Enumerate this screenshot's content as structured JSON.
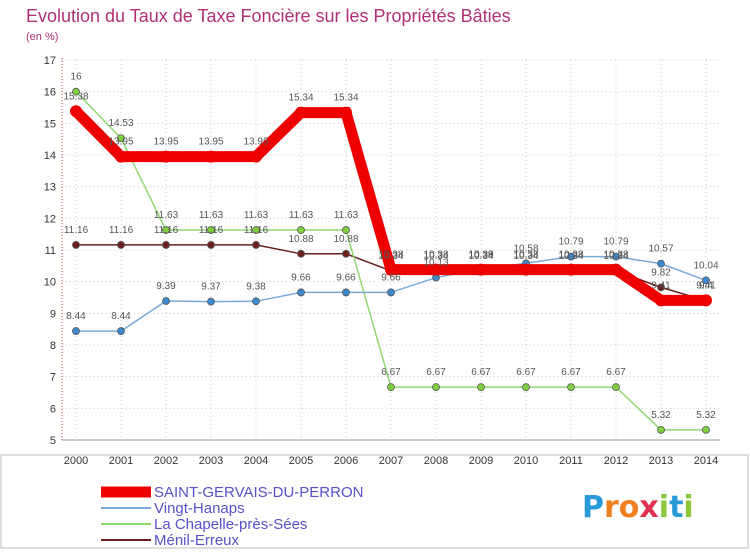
{
  "chart_data": {
    "type": "line",
    "title": "Evolution du Taux de Taxe Foncière sur les Propriétés Bâties",
    "unit_label": "(en %)",
    "ylim": [
      5,
      17
    ],
    "y_ticks": [
      5,
      6,
      7,
      8,
      9,
      10,
      11,
      12,
      13,
      14,
      15,
      16,
      17
    ],
    "categories": [
      "2000",
      "2001",
      "2002",
      "2003",
      "2004",
      "2005",
      "2006",
      "2007",
      "2008",
      "2009",
      "2010",
      "2011",
      "2012",
      "2013",
      "2014"
    ],
    "legend_position": "bottom-left",
    "series": [
      {
        "name": "Ménil-Erreux",
        "color": "#6b1f1f",
        "point_color": "#6b1f1f",
        "weight": "thin",
        "values": [
          11.16,
          11.16,
          11.16,
          11.16,
          11.16,
          10.88,
          10.88,
          10.34,
          10.34,
          10.34,
          10.34,
          10.34,
          10.34,
          9.82,
          9.4
        ],
        "labels": [
          "11.16",
          "11.16",
          "11.16",
          "11.16",
          "11.16",
          "10.88",
          "10.88",
          "10.34",
          "10.34",
          "10.34",
          "10.34",
          "10.34",
          "10.34",
          "9.82",
          "9.4"
        ]
      },
      {
        "name": "La Chapelle-près-Sées",
        "color": "#90d870",
        "point_color": "#7fd040",
        "weight": "thin",
        "values": [
          16,
          14.53,
          11.63,
          11.63,
          11.63,
          11.63,
          11.63,
          6.67,
          6.67,
          6.67,
          6.67,
          6.67,
          6.67,
          5.32,
          5.32
        ],
        "labels": [
          "16",
          "14.53",
          "11.63",
          "11.63",
          "11.63",
          "11.63",
          "11.63",
          "6.67",
          "6.67",
          "6.67",
          "6.67",
          "6.67",
          "6.67",
          "5.32",
          "5.32"
        ]
      },
      {
        "name": "Vingt-Hanaps",
        "color": "#7aaad8",
        "point_color": "#3c8ad0",
        "weight": "thin",
        "values": [
          8.44,
          8.44,
          9.39,
          9.37,
          9.38,
          9.66,
          9.66,
          9.66,
          10.13,
          10.39,
          10.58,
          10.79,
          10.79,
          10.57,
          10.04
        ],
        "labels": [
          "8.44",
          "8.44",
          "9.39",
          "9.37",
          "9.38",
          "9.66",
          "9.66",
          "9.66",
          "10.13",
          "10.39",
          "10.58",
          "10.79",
          "10.79",
          "10.57",
          "10.04"
        ]
      },
      {
        "name": "SAINT-GERVAIS-DU-PERRON",
        "color": "#ee0000",
        "point_color": "#ee0000",
        "weight": "thick",
        "values": [
          15.38,
          13.95,
          13.95,
          13.95,
          13.95,
          15.34,
          15.34,
          10.38,
          10.38,
          10.38,
          10.38,
          10.38,
          10.38,
          9.41,
          9.41
        ],
        "labels": [
          "15.38",
          "13.95",
          "13.95",
          "13.95",
          "13.95",
          "15.34",
          "15.34",
          "10.38",
          "10.38",
          "10.38",
          "10.38",
          "10.38",
          "10.38",
          "9.41",
          "9.41"
        ]
      }
    ],
    "legend": [
      "SAINT-GERVAIS-DU-PERRON",
      "Vingt-Hanaps",
      "La Chapelle-près-Sées",
      "Ménil-Erreux"
    ]
  },
  "logo": {
    "letters": [
      "P",
      "r",
      "o",
      "x",
      "i",
      "t",
      "i"
    ],
    "colors": [
      "#2a9ad8",
      "#f08020",
      "#f08020",
      "#e03050",
      "#8cc83c",
      "#2a9ad8",
      "#8cc83c"
    ]
  }
}
